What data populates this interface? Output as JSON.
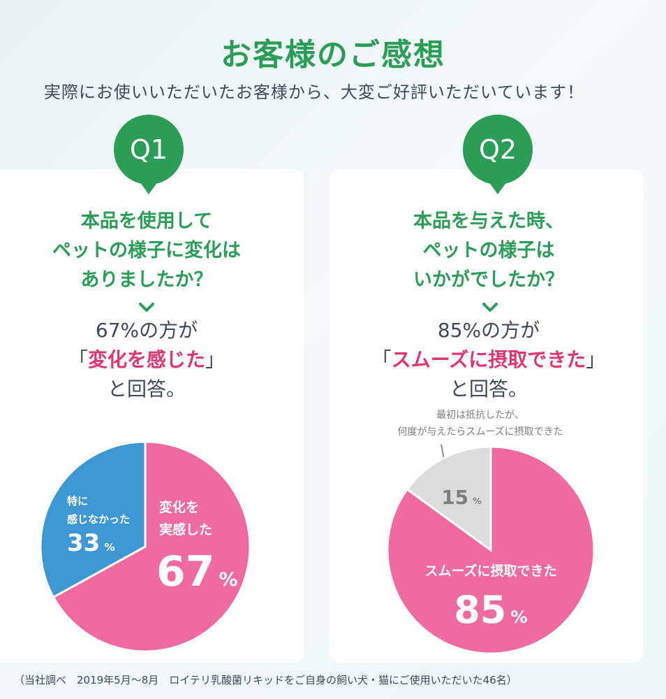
{
  "header": {
    "title": "お客様のご感想",
    "subtitle": "実際にお使いいただいたお客様から、大変ご好評いただいています！"
  },
  "q1": {
    "badge": "Q1",
    "question": "本品を使用して\nペットの様子に変化は\nありましたか？",
    "answer_line1": "67%の方が",
    "answer_open": "「",
    "answer_highlight": "変化を感じた",
    "answer_close": "」",
    "answer_line3": "と回答。"
  },
  "q2": {
    "badge": "Q2",
    "question": "本品を与えた時、\nペットの様子は\nいかがでしたか？",
    "answer_line1": "85%の方が",
    "answer_open": "「",
    "answer_highlight": "スムーズに摂取できた",
    "answer_close": "」",
    "answer_line3": "と回答。",
    "note": "最初は抵抗したが、\n何度が与えたらスムーズに摂取できた"
  },
  "chart_data": [
    {
      "type": "pie",
      "slices": [
        {
          "label": "変化を\n実感した",
          "value": 67,
          "color": "#ef6aa0"
        },
        {
          "label": "特に\n感じなかった",
          "value": 33,
          "color": "#3d97d3"
        }
      ],
      "percent_suffix": "%"
    },
    {
      "type": "pie",
      "slices": [
        {
          "label": "スムーズに摂取できた",
          "value": 85,
          "color": "#ef6aa0"
        },
        {
          "label": "",
          "value": 15,
          "color": "#dcdcdc"
        }
      ],
      "percent_suffix": "%"
    }
  ],
  "footnote": "（当社調べ　2019年5月〜8月　ロイテリ乳酸菌リキッドをご自身の飼い犬・猫にご使用いただいた46名）",
  "colors": {
    "green": "#2a9d57",
    "pink": "#ef6aa0",
    "blue": "#3d97d3",
    "gray": "#dcdcdc",
    "highlight": "#e0366e"
  }
}
